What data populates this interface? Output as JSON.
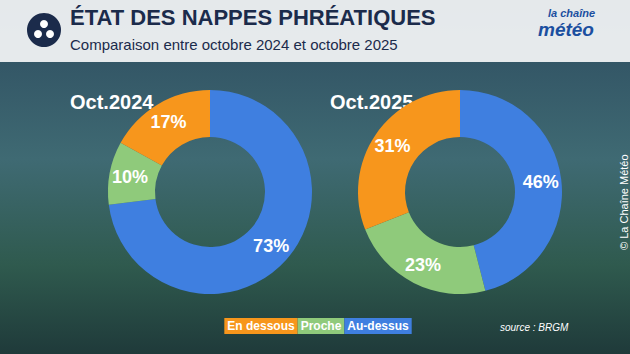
{
  "title": "ÉTAT DES NAPPES PHRÉATIQUES",
  "subtitle": "Comparaison entre octobre 2024 et octobre 2025",
  "logo": [
    "la chaîne",
    "météo"
  ],
  "source": "source : BRGM",
  "credit": "© La Chaîne Météo",
  "chart_data": [
    {
      "type": "pie",
      "title": "Oct.2024",
      "categories": [
        "Au-dessus",
        "Proche",
        "En dessous"
      ],
      "values": [
        73,
        10,
        17
      ],
      "value_labels": [
        "73%",
        "10%",
        "17%"
      ],
      "colors": [
        "#3f7fe0",
        "#8fca7b",
        "#f7961c"
      ],
      "data_labels": true,
      "legend": "bottom"
    },
    {
      "type": "pie",
      "title": "Oct.2025",
      "categories": [
        "Au-dessus",
        "Proche",
        "En dessous"
      ],
      "values": [
        46,
        23,
        31
      ],
      "value_labels": [
        "46%",
        "23%",
        "31%"
      ],
      "colors": [
        "#3f7fe0",
        "#8fca7b",
        "#f7961c"
      ],
      "data_labels": true,
      "legend": "bottom"
    }
  ]
}
